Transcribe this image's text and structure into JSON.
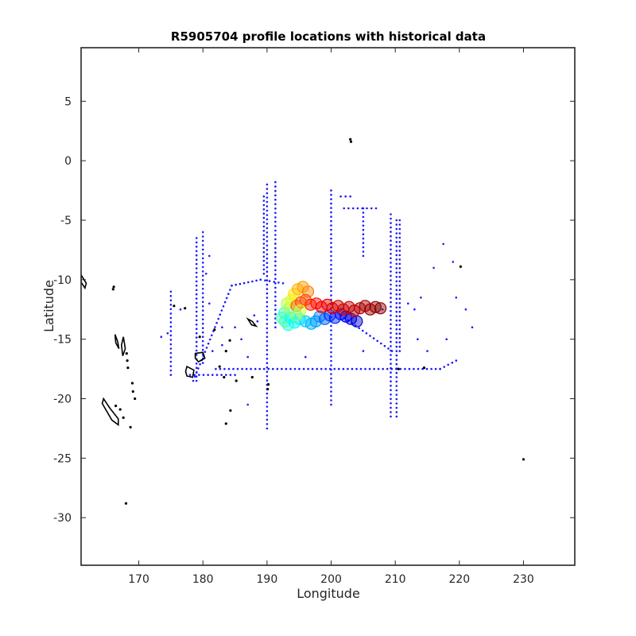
{
  "chart_data": {
    "type": "scatter",
    "title": "R5905704 profile locations with historical data",
    "xlabel": "Longitude",
    "ylabel": "Latitude",
    "xlim": [
      161,
      238
    ],
    "ylim": [
      -34,
      9.5
    ],
    "xticks": [
      170,
      180,
      190,
      200,
      210,
      220,
      230
    ],
    "yticks": [
      5,
      0,
      -5,
      -10,
      -15,
      -20,
      -25,
      -30
    ],
    "grid": false,
    "legend": "none",
    "colors": {
      "historical": "#1a1aff",
      "coast": "#000000",
      "axes": "#262626"
    },
    "historical_tracks": [
      {
        "x": [
          179,
          179
        ],
        "y": [
          -6.5,
          -18.5
        ]
      },
      {
        "x": [
          180,
          180
        ],
        "y": [
          -6,
          -17
        ]
      },
      {
        "x": [
          190,
          190
        ],
        "y": [
          -2,
          -22.5
        ]
      },
      {
        "x": [
          191.3,
          191.3
        ],
        "y": [
          -1.8,
          -14
        ]
      },
      {
        "x": [
          189.5,
          189.5
        ],
        "y": [
          -3,
          -9.5
        ]
      },
      {
        "x": [
          200,
          200
        ],
        "y": [
          -2.5,
          -20.5
        ]
      },
      {
        "x": [
          209.3,
          209.3
        ],
        "y": [
          -4.5,
          -21.5
        ]
      },
      {
        "x": [
          210.2,
          210.2
        ],
        "y": [
          -5,
          -21.5
        ]
      },
      {
        "x": [
          210.7,
          210.7
        ],
        "y": [
          -5,
          -16
        ]
      },
      {
        "x": [
          182,
          217
        ],
        "y": [
          -17.5,
          -17.5
        ]
      },
      {
        "x": [
          217,
          219.5
        ],
        "y": [
          -17.5,
          -16.8
        ]
      },
      {
        "x": [
          184.5,
          189
        ],
        "y": [
          -10.5,
          -10
        ]
      },
      {
        "x": [
          189,
          192.5
        ],
        "y": [
          -10,
          -10.3
        ]
      },
      {
        "x": [
          184.5,
          178.5
        ],
        "y": [
          -10.5,
          -18.5
        ]
      },
      {
        "x": [
          201.5,
          203
        ],
        "y": [
          -3,
          -3
        ]
      },
      {
        "x": [
          202,
          207
        ],
        "y": [
          -4,
          -4
        ]
      },
      {
        "x": [
          205,
          205
        ],
        "y": [
          -4,
          -8
        ]
      },
      {
        "x": [
          201.5,
          209.5
        ],
        "y": [
          -13,
          -16
        ]
      },
      {
        "x": [
          175,
          175
        ],
        "y": [
          -11,
          -18
        ]
      },
      {
        "x": [
          178,
          185
        ],
        "y": [
          -18,
          -18
        ]
      }
    ],
    "historical_points": [
      [
        174.5,
        -14.5
      ],
      [
        176.5,
        -12.5
      ],
      [
        173.5,
        -14.8
      ],
      [
        183,
        -14
      ],
      [
        186,
        -15
      ],
      [
        188,
        -13
      ],
      [
        187,
        -16.5
      ],
      [
        187,
        -20.5
      ],
      [
        188.5,
        -13.5
      ],
      [
        181,
        -12
      ],
      [
        180.5,
        -9.5
      ],
      [
        181,
        -8
      ],
      [
        183,
        -15.5
      ],
      [
        185,
        -14
      ],
      [
        181.5,
        -16
      ],
      [
        196,
        -16.5
      ],
      [
        205,
        -16
      ],
      [
        212,
        -12
      ],
      [
        213,
        -12.5
      ],
      [
        214,
        -11.5
      ],
      [
        213.5,
        -15
      ],
      [
        215,
        -16
      ],
      [
        216,
        -9
      ],
      [
        217.5,
        -7
      ],
      [
        219,
        -8.5
      ],
      [
        219.5,
        -11.5
      ],
      [
        221,
        -12.5
      ],
      [
        222,
        -14
      ],
      [
        218,
        -15
      ],
      [
        208,
        -12.5
      ]
    ],
    "coast_polygons": [
      [
        [
          164.5,
          -20
        ],
        [
          165.5,
          -20.8
        ],
        [
          166.8,
          -21.7
        ],
        [
          166.8,
          -22.2
        ],
        [
          165.8,
          -21.8
        ],
        [
          164.3,
          -20.4
        ]
      ],
      [
        [
          177.5,
          -17.3
        ],
        [
          178.6,
          -17.6
        ],
        [
          178.4,
          -18.2
        ],
        [
          177.5,
          -18.1
        ],
        [
          177.3,
          -17.7
        ]
      ],
      [
        [
          178.8,
          -16.2
        ],
        [
          180,
          -16.1
        ],
        [
          180.3,
          -16.6
        ],
        [
          179.3,
          -16.9
        ],
        [
          178.8,
          -16.6
        ]
      ],
      [
        [
          187,
          -13.3
        ],
        [
          187.7,
          -13.5
        ],
        [
          188.3,
          -13.9
        ],
        [
          187.6,
          -13.8
        ]
      ],
      [
        [
          161,
          -9.6
        ],
        [
          161.8,
          -10.3
        ],
        [
          161.6,
          -10.7
        ],
        [
          161,
          -10.2
        ]
      ],
      [
        [
          166.3,
          -14.6
        ],
        [
          166.7,
          -15.2
        ],
        [
          166.9,
          -15.8
        ],
        [
          166.4,
          -15.3
        ]
      ],
      [
        [
          167.6,
          -14.8
        ],
        [
          167.9,
          -15.8
        ],
        [
          167.5,
          -16.4
        ],
        [
          167.3,
          -15.5
        ]
      ]
    ],
    "coast_points": [
      [
        203,
        1.8
      ],
      [
        203.1,
        1.6
      ],
      [
        166,
        -10.8
      ],
      [
        166.1,
        -10.6
      ],
      [
        168.1,
        -16.2
      ],
      [
        168.2,
        -16.8
      ],
      [
        168.3,
        -17.4
      ],
      [
        169,
        -18.7
      ],
      [
        169.1,
        -19.4
      ],
      [
        169.4,
        -20
      ],
      [
        166.4,
        -20.6
      ],
      [
        167.1,
        -20.9
      ],
      [
        167.6,
        -21.6
      ],
      [
        168.7,
        -22.4
      ],
      [
        168,
        -28.8
      ],
      [
        177.2,
        -12.4
      ],
      [
        181.8,
        -14.2
      ],
      [
        184.2,
        -15.1
      ],
      [
        183.6,
        -16
      ],
      [
        182.6,
        -17.3
      ],
      [
        183.3,
        -18.2
      ],
      [
        184.3,
        -21
      ],
      [
        185.2,
        -18.5
      ],
      [
        183.6,
        -22.1
      ],
      [
        187.7,
        -18.2
      ],
      [
        190.2,
        -18.8
      ],
      [
        190.1,
        -19.2
      ],
      [
        210.5,
        -17.5
      ],
      [
        214.5,
        -17.4
      ],
      [
        220.2,
        -8.9
      ],
      [
        230,
        -25.1
      ],
      [
        175.5,
        -12.2
      ],
      [
        179.5,
        -14.8
      ]
    ],
    "argo_profiles": {
      "colormap": "jet",
      "color_domain": [
        0,
        1
      ],
      "points": [
        [
          192.3,
          -13.2,
          0.45
        ],
        [
          192.8,
          -13.5,
          0.45
        ],
        [
          193.3,
          -13.8,
          0.42
        ],
        [
          192.7,
          -12.8,
          0.43
        ],
        [
          193.7,
          -13.2,
          0.4
        ],
        [
          194.3,
          -13.6,
          0.38
        ],
        [
          195.1,
          -13.3,
          0.36
        ],
        [
          196,
          -13.5,
          0.33
        ],
        [
          196.9,
          -13.7,
          0.3
        ],
        [
          197.6,
          -13.5,
          0.28
        ],
        [
          198.2,
          -13.1,
          0.26
        ],
        [
          199,
          -13.3,
          0.22
        ],
        [
          199.8,
          -13,
          0.18
        ],
        [
          200.6,
          -13.2,
          0.16
        ],
        [
          201.5,
          -12.9,
          0.14
        ],
        [
          202.3,
          -13.1,
          0.12
        ],
        [
          203.1,
          -13.3,
          0.1
        ],
        [
          204,
          -13.5,
          0.08
        ],
        [
          193.5,
          -12.4,
          0.52
        ],
        [
          193.1,
          -12,
          0.55
        ],
        [
          193.8,
          -11.7,
          0.6
        ],
        [
          194.2,
          -11.2,
          0.65
        ],
        [
          194.8,
          -10.8,
          0.7
        ],
        [
          195.6,
          -10.6,
          0.72
        ],
        [
          196.4,
          -11,
          0.75
        ],
        [
          196,
          -11.7,
          0.8
        ],
        [
          196.8,
          -12.1,
          0.85
        ],
        [
          197.7,
          -12,
          0.86
        ],
        [
          198.5,
          -12.3,
          0.88
        ],
        [
          199.4,
          -12.1,
          0.9
        ],
        [
          200.2,
          -12.4,
          0.9
        ],
        [
          201.1,
          -12.2,
          0.92
        ],
        [
          201.9,
          -12.5,
          0.92
        ],
        [
          202.8,
          -12.3,
          0.93
        ],
        [
          203.6,
          -12.6,
          0.94
        ],
        [
          204.5,
          -12.4,
          0.95
        ],
        [
          205.3,
          -12.2,
          0.96
        ],
        [
          206.1,
          -12.5,
          0.97
        ],
        [
          206.9,
          -12.3,
          0.98
        ],
        [
          207.7,
          -12.4,
          0.99
        ],
        [
          194.6,
          -12.2,
          0.78
        ],
        [
          195.3,
          -11.9,
          0.8
        ],
        [
          195.2,
          -12.6,
          0.58
        ],
        [
          194.6,
          -13,
          0.5
        ]
      ]
    }
  }
}
